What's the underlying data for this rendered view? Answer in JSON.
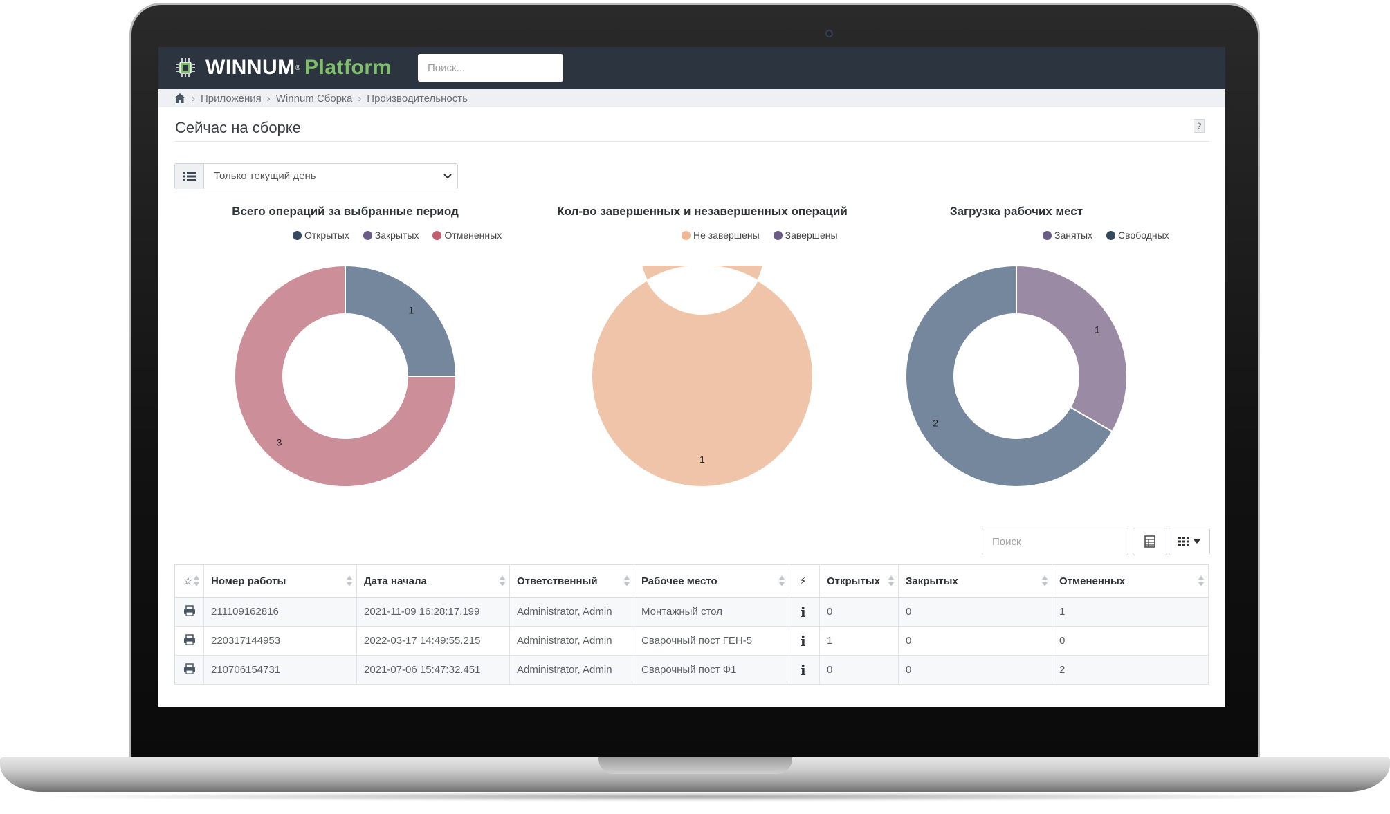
{
  "app": {
    "logo_main": "WINNUM",
    "logo_reg": "®",
    "logo_accent": "Platform",
    "search_placeholder": "Поиск..."
  },
  "breadcrumb": [
    "Приложения",
    "Winnum Сборка",
    "Производительность"
  ],
  "page": {
    "title": "Сейчас на сборке",
    "help_label": "?"
  },
  "filter": {
    "value": "Только текущий день"
  },
  "charts": [
    {
      "title": "Всего операций за выбранные период",
      "legend": [
        {
          "name": "Открытых",
          "color": "#34495e"
        },
        {
          "name": "Закрытых",
          "color": "#6b5b87"
        },
        {
          "name": "Отмененных",
          "color": "#c45a6e"
        }
      ]
    },
    {
      "title": "Кол-во завершенных и незавершенных операций",
      "legend": [
        {
          "name": "Не завершены",
          "color": "#f0b796"
        },
        {
          "name": "Завершены",
          "color": "#6b5b87"
        }
      ]
    },
    {
      "title": "Загрузка рабочих мест",
      "legend": [
        {
          "name": "Занятых",
          "color": "#6b5b87"
        },
        {
          "name": "Свободных",
          "color": "#34495e"
        }
      ]
    }
  ],
  "chart_data": [
    {
      "type": "pie",
      "title": "Всего операций за выбранные период",
      "categories": [
        "Открытых",
        "Закрытых",
        "Отмененных"
      ],
      "values": [
        1,
        0,
        3
      ],
      "colors": [
        "#74879c",
        "#9a8aa3",
        "#cc8f9a"
      ],
      "data_labels": [
        "1",
        "",
        "3"
      ]
    },
    {
      "type": "pie",
      "title": "Кол-во завершенных и незавершенных операций",
      "categories": [
        "Не завершены",
        "Завершены"
      ],
      "values": [
        1,
        0
      ],
      "colors": [
        "#f0c4a8",
        "#9a8aa3"
      ],
      "data_labels": [
        "1",
        ""
      ]
    },
    {
      "type": "pie",
      "title": "Загрузка рабочих мест",
      "categories": [
        "Занятых",
        "Свободных"
      ],
      "values": [
        1,
        2
      ],
      "colors": [
        "#9a8aa3",
        "#74879c"
      ],
      "data_labels": [
        "1",
        "2"
      ]
    }
  ],
  "table": {
    "search_placeholder": "Поиск",
    "columns": [
      "☆",
      "Номер работы",
      "Дата начала",
      "Ответственный",
      "Рабочее место",
      "⚡",
      "Открытых",
      "Закрытых",
      "Отмененных"
    ],
    "rows": [
      {
        "job": "211109162816",
        "start": "2021-11-09 16:28:17.199",
        "owner": "Administrator, Admin",
        "workplace": "Монтажный стол",
        "info": "i",
        "open": "0",
        "closed": "0",
        "cancelled": "1"
      },
      {
        "job": "220317144953",
        "start": "2022-03-17 14:49:55.215",
        "owner": "Administrator, Admin",
        "workplace": "Сварочный пост ГЕН-5",
        "info": "i",
        "open": "1",
        "closed": "0",
        "cancelled": "0"
      },
      {
        "job": "210706154731",
        "start": "2021-07-06 15:47:32.451",
        "owner": "Administrator, Admin",
        "workplace": "Сварочный пост Ф1",
        "info": "i",
        "open": "0",
        "closed": "0",
        "cancelled": "2"
      }
    ]
  }
}
